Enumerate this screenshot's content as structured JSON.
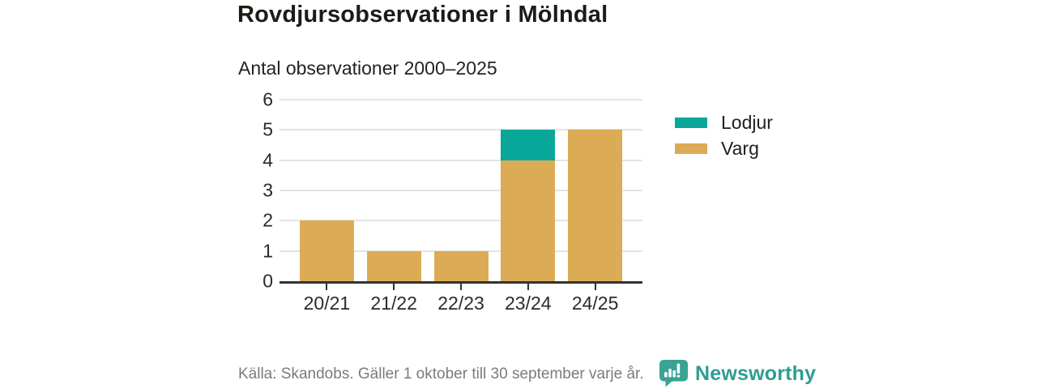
{
  "header": {
    "title": "Rovdjursobservationer i Mölndal",
    "subtitle": "Antal observationer 2000–2025"
  },
  "chart_data": {
    "type": "bar",
    "stacked": true,
    "title": "Rovdjursobservationer i Mölndal",
    "subtitle": "Antal observationer 2000–2025",
    "categories": [
      "20/21",
      "21/22",
      "22/23",
      "23/24",
      "24/25"
    ],
    "series": [
      {
        "name": "Lodjur",
        "color": "#09a79a",
        "values": [
          0,
          0,
          0,
          1,
          0
        ]
      },
      {
        "name": "Varg",
        "color": "#dcab55",
        "values": [
          2,
          1,
          1,
          4,
          5
        ]
      }
    ],
    "totals": [
      2,
      1,
      1,
      5,
      5
    ],
    "xlabel": "",
    "ylabel": "",
    "ylim": [
      0,
      6
    ],
    "yticks": [
      0,
      1,
      2,
      3,
      4,
      5,
      6
    ],
    "grid": true,
    "legend_position": "right"
  },
  "footer": {
    "source": "Källa: Skandobs. Gäller 1 oktober till 30 september varje år.",
    "brand": "Newsworthy"
  },
  "colors": {
    "lodjur": "#09a79a",
    "varg": "#dcab55",
    "axis": "#333333",
    "grid": "#e4e4e4",
    "title_text": "#1b1c16",
    "muted_text": "#7b7b7b",
    "brand_teal": "#2d9d90"
  }
}
